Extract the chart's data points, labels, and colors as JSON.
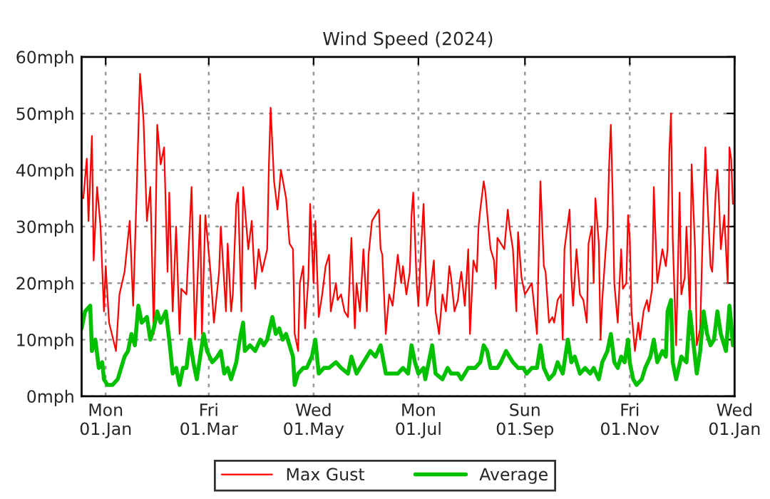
{
  "chart_data": {
    "type": "line",
    "title": "Wind Speed (2024)",
    "xlim": [
      "2023-12-18",
      "2025-01-01"
    ],
    "xticks": [
      {
        "value": "2024-01-01",
        "label": "Mon\n01.Jan"
      },
      {
        "value": "2024-03-01",
        "label": "Fri\n01.Mar"
      },
      {
        "value": "2024-05-01",
        "label": "Wed\n01.May"
      },
      {
        "value": "2024-07-01",
        "label": "Mon\n01.Jul"
      },
      {
        "value": "2024-09-01",
        "label": "Sun\n01.Sep"
      },
      {
        "value": "2024-11-01",
        "label": "Fri\n01.Nov"
      },
      {
        "value": "2025-01-01",
        "label": "Wed\n01.Jan"
      }
    ],
    "ylim": [
      0,
      60
    ],
    "yticks": [
      {
        "value": 0,
        "label": "0mph"
      },
      {
        "value": 10,
        "label": "10mph"
      },
      {
        "value": 20,
        "label": "20mph"
      },
      {
        "value": 30,
        "label": "30mph"
      },
      {
        "value": 40,
        "label": "40mph"
      },
      {
        "value": 50,
        "label": "50mph"
      },
      {
        "value": 60,
        "label": "60mph"
      }
    ],
    "grid": true,
    "legend": "bottom",
    "marker": "none",
    "line_style": "solid",
    "series": [
      {
        "name": "Max Gust",
        "color": "#ff0000",
        "x": [
          "2023-12-19",
          "2023-12-21",
          "2023-12-22",
          "2023-12-24",
          "2023-12-25",
          "2023-12-27",
          "2023-12-29",
          "2023-12-31",
          "2024-01-01",
          "2024-01-03",
          "2024-01-07",
          "2024-01-09",
          "2024-01-12",
          "2024-01-15",
          "2024-01-17",
          "2024-01-19",
          "2024-01-21",
          "2024-01-23",
          "2024-01-25",
          "2024-01-27",
          "2024-01-29",
          "2024-01-31",
          "2024-02-02",
          "2024-02-04",
          "2024-02-06",
          "2024-02-07",
          "2024-02-09",
          "2024-02-11",
          "2024-02-13",
          "2024-02-14",
          "2024-02-17",
          "2024-02-20",
          "2024-02-22",
          "2024-02-25",
          "2024-02-26",
          "2024-02-28",
          "2024-03-02",
          "2024-03-04",
          "2024-03-07",
          "2024-03-08",
          "2024-03-11",
          "2024-03-12",
          "2024-03-14",
          "2024-03-15",
          "2024-03-17",
          "2024-03-18",
          "2024-03-20",
          "2024-03-21",
          "2024-03-24",
          "2024-03-26",
          "2024-03-28",
          "2024-03-30",
          "2024-04-01",
          "2024-04-04",
          "2024-04-05",
          "2024-04-06",
          "2024-04-08",
          "2024-04-10",
          "2024-04-12",
          "2024-04-15",
          "2024-04-17",
          "2024-04-19",
          "2024-04-20",
          "2024-04-22",
          "2024-04-23",
          "2024-04-25",
          "2024-04-26",
          "2024-04-28",
          "2024-04-29",
          "2024-05-01",
          "2024-05-02",
          "2024-05-04",
          "2024-05-06",
          "2024-05-08",
          "2024-05-10",
          "2024-05-11",
          "2024-05-14",
          "2024-05-15",
          "2024-05-17",
          "2024-05-19",
          "2024-05-21",
          "2024-05-23",
          "2024-05-25",
          "2024-05-26",
          "2024-05-28",
          "2024-05-30",
          "2024-06-01",
          "2024-06-02",
          "2024-06-04",
          "2024-06-06",
          "2024-06-08",
          "2024-06-09",
          "2024-06-10",
          "2024-06-12",
          "2024-06-14",
          "2024-06-16",
          "2024-06-17",
          "2024-06-19",
          "2024-06-21",
          "2024-06-22",
          "2024-06-24",
          "2024-06-26",
          "2024-06-27",
          "2024-06-28",
          "2024-06-30",
          "2024-07-01",
          "2024-07-02",
          "2024-07-04",
          "2024-07-06",
          "2024-07-08",
          "2024-07-10",
          "2024-07-11",
          "2024-07-13",
          "2024-07-15",
          "2024-07-17",
          "2024-07-19",
          "2024-07-20",
          "2024-07-22",
          "2024-07-24",
          "2024-07-25",
          "2024-07-26",
          "2024-07-28",
          "2024-07-30",
          "2024-07-31",
          "2024-08-02",
          "2024-08-04",
          "2024-08-05",
          "2024-08-06",
          "2024-08-08",
          "2024-08-09",
          "2024-08-11",
          "2024-08-12",
          "2024-08-14",
          "2024-08-15",
          "2024-08-16",
          "2024-08-18",
          "2024-08-20",
          "2024-08-22",
          "2024-08-23",
          "2024-08-25",
          "2024-08-27",
          "2024-08-28",
          "2024-08-30",
          "2024-09-01",
          "2024-09-03",
          "2024-09-05",
          "2024-09-07",
          "2024-09-08",
          "2024-09-10",
          "2024-09-12",
          "2024-09-13",
          "2024-09-15",
          "2024-09-17",
          "2024-09-18",
          "2024-09-20",
          "2024-09-22",
          "2024-09-23",
          "2024-09-24",
          "2024-09-27",
          "2024-09-28",
          "2024-09-29",
          "2024-10-01",
          "2024-10-03",
          "2024-10-05",
          "2024-10-07",
          "2024-10-08",
          "2024-10-10",
          "2024-10-11",
          "2024-10-12",
          "2024-10-14",
          "2024-10-15",
          "2024-10-16",
          "2024-10-18",
          "2024-10-19",
          "2024-10-20",
          "2024-10-21",
          "2024-10-22",
          "2024-10-23",
          "2024-10-25",
          "2024-10-27",
          "2024-10-28",
          "2024-10-30",
          "2024-10-31",
          "2024-11-01",
          "2024-11-02",
          "2024-11-04",
          "2024-11-06",
          "2024-11-07",
          "2024-11-09",
          "2024-11-11",
          "2024-11-12",
          "2024-11-14",
          "2024-11-15",
          "2024-11-17",
          "2024-11-18",
          "2024-11-20",
          "2024-11-22",
          "2024-11-23",
          "2024-11-24",
          "2024-11-25",
          "2024-11-26",
          "2024-11-28",
          "2024-11-30",
          "2024-12-01",
          "2024-12-03",
          "2024-12-04",
          "2024-12-06",
          "2024-12-07",
          "2024-12-09",
          "2024-12-10",
          "2024-12-12",
          "2024-12-14",
          "2024-12-15",
          "2024-12-16",
          "2024-12-18",
          "2024-12-19",
          "2024-12-21",
          "2024-12-22",
          "2024-12-23",
          "2024-12-24",
          "2024-12-26",
          "2024-12-28",
          "2024-12-29",
          "2024-12-30",
          "2024-12-31"
        ],
        "values": [
          35,
          42,
          31,
          46,
          24,
          37,
          30,
          15,
          23,
          13,
          8,
          18,
          22,
          31,
          16,
          36,
          57,
          49,
          31,
          37,
          11,
          48,
          41,
          44,
          22,
          36,
          15,
          30,
          11,
          19,
          18,
          37,
          10,
          32,
          11,
          32,
          22,
          13,
          22,
          30,
          15,
          27,
          15,
          18,
          34,
          36,
          15,
          37,
          26,
          31,
          19,
          26,
          22,
          26,
          41,
          51,
          38,
          33,
          40,
          35,
          27,
          26,
          11,
          8,
          20,
          23,
          12,
          21,
          34,
          20,
          31,
          14,
          18,
          23,
          25,
          15,
          20,
          17,
          18,
          15,
          14,
          28,
          12,
          20,
          15,
          26,
          15,
          25,
          31,
          32,
          33,
          26,
          25,
          11,
          18,
          16,
          19,
          25,
          20,
          23,
          18,
          22,
          32,
          36,
          20,
          16,
          23,
          34,
          16,
          19,
          24,
          15,
          11,
          18,
          15,
          23,
          21,
          15,
          17,
          20,
          22,
          16,
          26,
          11,
          24,
          22,
          30,
          33,
          38,
          36,
          29,
          26,
          24,
          19,
          28,
          27,
          26,
          33,
          30,
          26,
          15,
          29,
          21,
          18,
          19,
          20,
          14,
          11,
          38,
          23,
          22,
          13,
          14,
          13,
          17,
          18,
          10,
          26,
          33,
          21,
          16,
          26,
          18,
          17,
          13,
          27,
          30,
          20,
          35,
          27,
          10,
          17,
          26,
          30,
          41,
          48,
          36,
          20,
          13,
          26,
          19,
          20,
          32,
          28,
          15,
          8,
          13,
          10,
          15,
          17,
          15,
          19,
          37,
          20,
          22,
          26,
          23,
          26,
          43,
          50,
          28,
          9,
          36,
          18,
          21,
          30,
          15,
          41,
          26,
          9,
          12,
          35,
          44,
          36,
          23,
          22,
          36,
          40,
          34,
          26,
          32,
          20,
          44,
          42,
          34
        ]
      },
      {
        "name": "Average",
        "color": "#00c000",
        "x": [
          "2023-12-18",
          "2023-12-20",
          "2023-12-23",
          "2023-12-24",
          "2023-12-26",
          "2023-12-28",
          "2023-12-30",
          "2023-12-31",
          "2024-01-02",
          "2024-01-05",
          "2024-01-08",
          "2024-01-10",
          "2024-01-12",
          "2024-01-14",
          "2024-01-16",
          "2024-01-18",
          "2024-01-20",
          "2024-01-22",
          "2024-01-25",
          "2024-01-27",
          "2024-01-29",
          "2024-01-31",
          "2024-02-02",
          "2024-02-05",
          "2024-02-07",
          "2024-02-09",
          "2024-02-11",
          "2024-02-13",
          "2024-02-15",
          "2024-02-17",
          "2024-02-19",
          "2024-02-21",
          "2024-02-23",
          "2024-02-25",
          "2024-02-27",
          "2024-02-29",
          "2024-03-03",
          "2024-03-06",
          "2024-03-08",
          "2024-03-10",
          "2024-03-12",
          "2024-03-14",
          "2024-03-17",
          "2024-03-19",
          "2024-03-21",
          "2024-03-22",
          "2024-03-25",
          "2024-03-28",
          "2024-03-31",
          "2024-04-02",
          "2024-04-04",
          "2024-04-07",
          "2024-04-09",
          "2024-04-11",
          "2024-04-13",
          "2024-04-15",
          "2024-04-17",
          "2024-04-19",
          "2024-04-20",
          "2024-04-22",
          "2024-04-25",
          "2024-04-27",
          "2024-04-30",
          "2024-05-02",
          "2024-05-04",
          "2024-05-07",
          "2024-05-10",
          "2024-05-14",
          "2024-05-17",
          "2024-05-21",
          "2024-05-23",
          "2024-05-26",
          "2024-05-30",
          "2024-06-03",
          "2024-06-06",
          "2024-06-09",
          "2024-06-12",
          "2024-06-15",
          "2024-06-19",
          "2024-06-22",
          "2024-06-25",
          "2024-06-27",
          "2024-06-29",
          "2024-07-01",
          "2024-07-04",
          "2024-07-05",
          "2024-07-09",
          "2024-07-11",
          "2024-07-15",
          "2024-07-18",
          "2024-07-20",
          "2024-07-24",
          "2024-07-26",
          "2024-07-30",
          "2024-08-03",
          "2024-08-06",
          "2024-08-08",
          "2024-08-10",
          "2024-08-12",
          "2024-08-16",
          "2024-08-18",
          "2024-08-21",
          "2024-08-25",
          "2024-08-28",
          "2024-08-31",
          "2024-09-02",
          "2024-09-05",
          "2024-09-08",
          "2024-09-10",
          "2024-09-12",
          "2024-09-15",
          "2024-09-18",
          "2024-09-20",
          "2024-09-23",
          "2024-09-26",
          "2024-09-28",
          "2024-09-30",
          "2024-10-03",
          "2024-10-06",
          "2024-10-09",
          "2024-10-11",
          "2024-10-14",
          "2024-10-16",
          "2024-10-19",
          "2024-10-21",
          "2024-10-23",
          "2024-10-25",
          "2024-10-27",
          "2024-10-29",
          "2024-10-31",
          "2024-11-01",
          "2024-11-03",
          "2024-11-05",
          "2024-11-08",
          "2024-11-10",
          "2024-11-13",
          "2024-11-15",
          "2024-11-17",
          "2024-11-20",
          "2024-11-22",
          "2024-11-23",
          "2024-11-25",
          "2024-11-26",
          "2024-11-28",
          "2024-12-01",
          "2024-12-04",
          "2024-12-06",
          "2024-12-10",
          "2024-12-12",
          "2024-12-14",
          "2024-12-16",
          "2024-12-18",
          "2024-12-20",
          "2024-12-22",
          "2024-12-24",
          "2024-12-27",
          "2024-12-29",
          "2024-12-30",
          "2024-12-31"
        ],
        "values": [
          12,
          15,
          16,
          8,
          10,
          5,
          6,
          3,
          2,
          2,
          3,
          5,
          7,
          8,
          11,
          9,
          16,
          13,
          14,
          10,
          12,
          15,
          13,
          15,
          10,
          4,
          5,
          2,
          5,
          5,
          10,
          6,
          3,
          7,
          11,
          8,
          6,
          7,
          8,
          4,
          5,
          3,
          6,
          10,
          13,
          8,
          9,
          8,
          10,
          9,
          10,
          14,
          11,
          12,
          10,
          11,
          9,
          7,
          2,
          4,
          5,
          5,
          7,
          10,
          4,
          5,
          5,
          6,
          5,
          4,
          7,
          4,
          6,
          8,
          7,
          9,
          4,
          4,
          4,
          5,
          4,
          9,
          6,
          4,
          5,
          3,
          9,
          4,
          3,
          5,
          4,
          4,
          3,
          5,
          5,
          6,
          9,
          8,
          5,
          5,
          6,
          8,
          6,
          5,
          5,
          4,
          5,
          5,
          9,
          5,
          3,
          4,
          6,
          4,
          10,
          6,
          7,
          4,
          5,
          4,
          5,
          3,
          6,
          8,
          11,
          6,
          5,
          7,
          6,
          10,
          6,
          3,
          2,
          3,
          5,
          7,
          10,
          6,
          8,
          7,
          15,
          17,
          6,
          3,
          7,
          6,
          15,
          4,
          8,
          15,
          11,
          9,
          10,
          15,
          11,
          8,
          16,
          13,
          9
        ]
      }
    ]
  }
}
